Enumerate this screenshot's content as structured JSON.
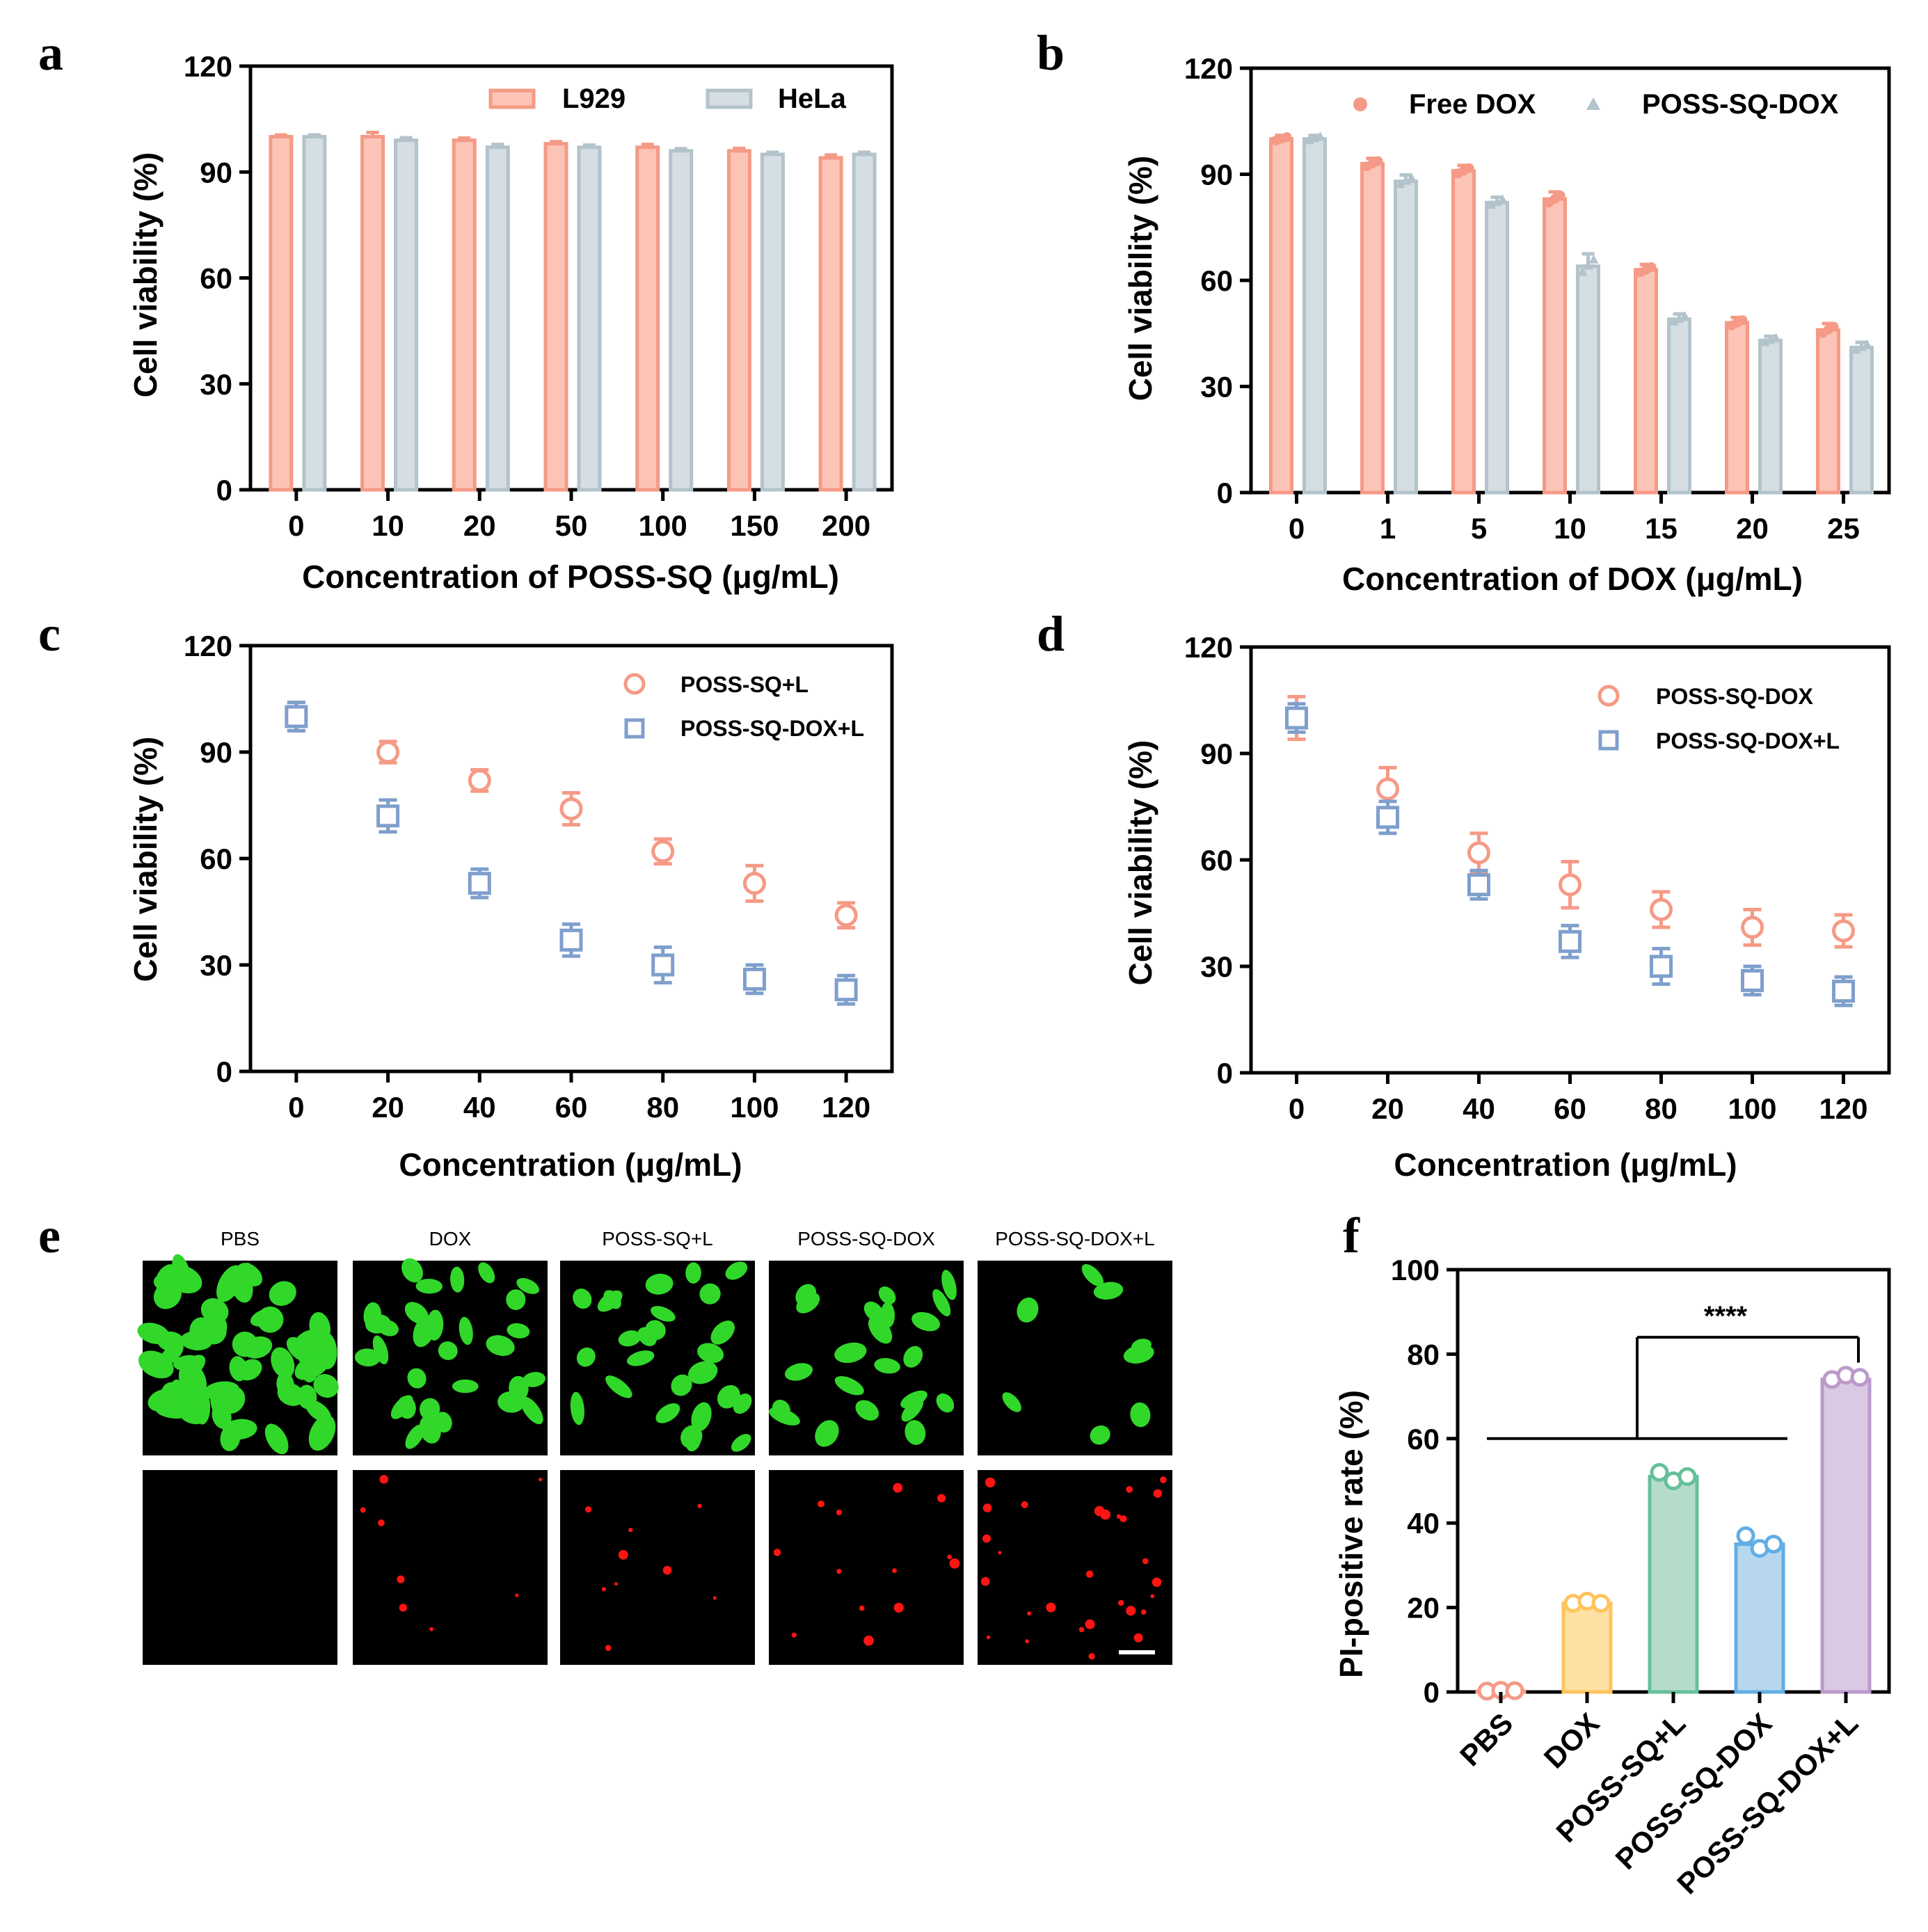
{
  "colors": {
    "salmon": "#f59a86",
    "salmon_light": "#fbc4b6",
    "gray_blue": "#b3c3cb",
    "gray_blue_light": "#d5dee3",
    "blue": "#7f9fcc",
    "orange": "#ffc35c",
    "orange_light": "#fde1a3",
    "green": "#66c09a",
    "green_light": "#b5dccb",
    "lightblue": "#62aee6",
    "lightblue_light": "#b6d7ee",
    "purple": "#bb9acb",
    "purple_light": "#dbc9e4",
    "live_stain": "#31d82a",
    "dead_stain": "#ff1414"
  },
  "chart_data": [
    {
      "panel": "a",
      "type": "bar",
      "categories": [
        "0",
        "10",
        "20",
        "50",
        "100",
        "150",
        "200"
      ],
      "series": [
        {
          "name": "L929",
          "values": [
            100,
            100,
            99,
            98,
            97,
            96,
            94
          ],
          "errors": [
            0.5,
            1.2,
            0.6,
            0.6,
            0.8,
            0.7,
            0.8
          ]
        },
        {
          "name": "HeLa",
          "values": [
            100,
            99,
            97,
            97,
            96,
            95,
            95
          ],
          "errors": [
            0.5,
            0.7,
            0.8,
            0.6,
            0.6,
            0.6,
            0.6
          ]
        }
      ],
      "ylim": [
        0,
        120
      ],
      "yticks": [
        "0",
        "30",
        "60",
        "90",
        "120"
      ],
      "xlabel": "Concentration of POSS-SQ (μg/mL)",
      "ylabel": "Cell viability (%)"
    },
    {
      "panel": "b",
      "type": "bar",
      "categories": [
        "0",
        "1",
        "5",
        "10",
        "15",
        "20",
        "25"
      ],
      "series": [
        {
          "name": "Free DOX",
          "values": [
            100,
            93,
            91,
            83,
            63,
            48,
            46
          ],
          "errors": [
            1.0,
            1.5,
            1.5,
            2.0,
            1.5,
            1.5,
            1.8
          ]
        },
        {
          "name": "POSS-SQ-DOX",
          "values": [
            100,
            88,
            82,
            64,
            49,
            43,
            41
          ],
          "errors": [
            1.0,
            1.8,
            1.5,
            3.5,
            1.5,
            1.2,
            1.5
          ]
        }
      ],
      "ylim": [
        0,
        120
      ],
      "yticks": [
        "0",
        "30",
        "60",
        "90",
        "120"
      ],
      "xlabel": "Concentration of DOX (μg/mL)",
      "ylabel": "Cell viability (%)"
    },
    {
      "panel": "c",
      "type": "scatter",
      "categories": [
        "0",
        "20",
        "40",
        "60",
        "80",
        "100",
        "120"
      ],
      "series": [
        {
          "name": "POSS-SQ+L",
          "values": [
            100,
            90,
            82,
            74,
            62,
            53,
            44
          ],
          "errors": [
            4,
            3,
            3,
            4.5,
            3.5,
            5,
            3.5
          ]
        },
        {
          "name": "POSS-SQ-DOX+L",
          "values": [
            100,
            72,
            53,
            37,
            30,
            26,
            23
          ],
          "errors": [
            4,
            4.5,
            4,
            4.5,
            5,
            4,
            4
          ]
        }
      ],
      "ylim": [
        0,
        120
      ],
      "yticks": [
        "0",
        "30",
        "60",
        "90",
        "120"
      ],
      "xlabel": "Concentration (μg/mL)",
      "ylabel": "Cell viability (%)"
    },
    {
      "panel": "d",
      "type": "scatter",
      "categories": [
        "0",
        "20",
        "40",
        "60",
        "80",
        "100",
        "120"
      ],
      "series": [
        {
          "name": "POSS-SQ-DOX",
          "values": [
            100,
            80,
            62,
            53,
            46,
            41,
            40
          ],
          "errors": [
            6,
            6,
            5.5,
            6.5,
            5,
            5,
            4.5
          ]
        },
        {
          "name": "POSS-SQ-DOX+L",
          "values": [
            100,
            72,
            53,
            37,
            30,
            26,
            23
          ],
          "errors": [
            4,
            4.5,
            4,
            4.5,
            5,
            4,
            4
          ]
        }
      ],
      "ylim": [
        0,
        120
      ],
      "yticks": [
        "0",
        "30",
        "60",
        "90",
        "120"
      ],
      "xlabel": "Concentration (μg/mL)",
      "ylabel": "Cell viability (%)"
    },
    {
      "panel": "f",
      "type": "bar",
      "categories": [
        "PBS",
        "DOX",
        "POSS-SQ+L",
        "POSS-SQ-DOX",
        "POSS-SQ-DOX+L"
      ],
      "values": [
        0.2,
        21,
        51,
        35,
        74
      ],
      "points": [
        [
          0.2,
          0.4,
          0.3
        ],
        [
          21,
          21.5,
          21
        ],
        [
          52,
          50,
          51
        ],
        [
          37,
          34,
          35
        ],
        [
          74,
          75,
          74.5
        ]
      ],
      "ylim": [
        0,
        100
      ],
      "yticks": [
        "0",
        "20",
        "40",
        "60",
        "80",
        "100"
      ],
      "ylabel": "PI-positive rate (%)",
      "significance": "****"
    }
  ],
  "panel_letters": {
    "a": "a",
    "b": "b",
    "c": "c",
    "d": "d",
    "e": "e",
    "f": "f"
  },
  "micrographs": {
    "labels": [
      "PBS",
      "DOX",
      "POSS-SQ+L",
      "POSS-SQ-DOX",
      "POSS-SQ-DOX+L"
    ],
    "live_cell_counts": [
      60,
      30,
      26,
      22,
      8
    ],
    "dead_cell_counts": [
      0,
      8,
      9,
      13,
      28
    ]
  }
}
